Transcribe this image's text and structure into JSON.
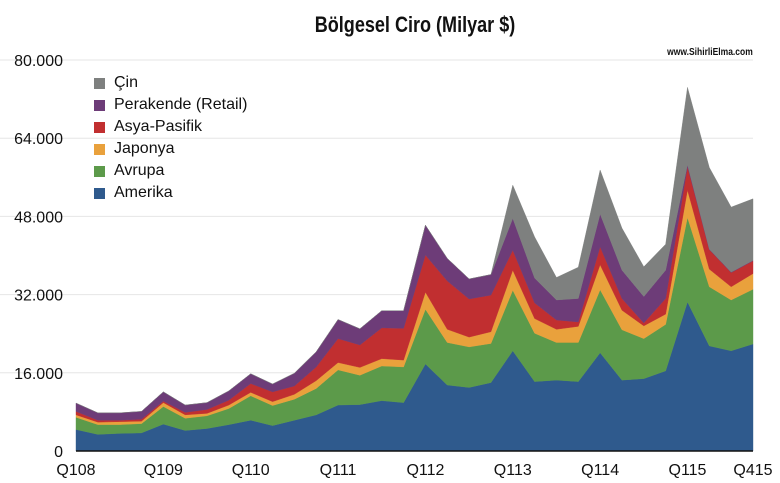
{
  "chart_data": {
    "type": "area",
    "stacked": true,
    "title": "Bölgesel Ciro (Milyar $)",
    "watermark": "www.SihirliElma.com",
    "xlabel": "",
    "ylabel": "",
    "ylim": [
      0,
      80000
    ],
    "yticks": [
      0,
      16000,
      32000,
      48000,
      64000,
      80000
    ],
    "ytick_labels": [
      "0",
      "16.000",
      "32.000",
      "48.000",
      "64.000",
      "80.000"
    ],
    "xtick_labels": [
      {
        "index": 0,
        "label": "Q108"
      },
      {
        "index": 4,
        "label": "Q109"
      },
      {
        "index": 8,
        "label": "Q110"
      },
      {
        "index": 12,
        "label": "Q111"
      },
      {
        "index": 16,
        "label": "Q112"
      },
      {
        "index": 20,
        "label": "Q113"
      },
      {
        "index": 24,
        "label": "Q114"
      },
      {
        "index": 28,
        "label": "Q115"
      },
      {
        "index": 31,
        "label": "Q415"
      }
    ],
    "grid": true,
    "legend_position": "top-left",
    "unit_note": "values in millions (axis 0–80.000)",
    "series": [
      {
        "name": "Amerika",
        "color": "#2f5a8d",
        "values": [
          4400,
          3400,
          3600,
          3700,
          5500,
          4200,
          4600,
          5400,
          6300,
          5200,
          6300,
          7400,
          9400,
          9500,
          10300,
          9900,
          17800,
          13500,
          13000,
          14000,
          20500,
          14200,
          14500,
          14200,
          20100,
          14500,
          14800,
          16400,
          30500,
          21500,
          20500,
          21900
        ]
      },
      {
        "name": "Avrupa",
        "color": "#5c9a4a",
        "values": [
          2500,
          2000,
          1800,
          1900,
          3600,
          2500,
          2600,
          3300,
          5000,
          4100,
          4300,
          5400,
          7200,
          6000,
          7100,
          7300,
          11200,
          8700,
          8300,
          8000,
          12400,
          9900,
          7700,
          8000,
          12900,
          10300,
          8200,
          9500,
          17300,
          12100,
          10400,
          11200
        ]
      },
      {
        "name": "Japonya",
        "color": "#e9a13c",
        "values": [
          500,
          500,
          600,
          500,
          800,
          700,
          500,
          700,
          700,
          800,
          1000,
          1600,
          1500,
          1600,
          1500,
          1400,
          3500,
          2700,
          2000,
          2400,
          4100,
          3000,
          2700,
          3300,
          5100,
          4000,
          2600,
          2100,
          5600,
          3600,
          2700,
          3200
        ]
      },
      {
        "name": "Asya-Pasifik",
        "color": "#c12f30",
        "values": [
          700,
          400,
          300,
          400,
          300,
          500,
          800,
          1000,
          1800,
          2000,
          1700,
          2800,
          4900,
          4600,
          6300,
          6500,
          7600,
          9900,
          7800,
          7500,
          4100,
          3200,
          1900,
          900,
          3700,
          2400,
          600,
          3200,
          4800,
          4000,
          2900,
          2600
        ]
      },
      {
        "name": "Perakende (Retail)",
        "color": "#6d3c78",
        "values": [
          1700,
          1500,
          1500,
          1600,
          1900,
          1500,
          1400,
          1900,
          2000,
          1600,
          2600,
          3100,
          3900,
          3300,
          3500,
          3600,
          6100,
          4600,
          4100,
          4200,
          6500,
          5100,
          4100,
          4800,
          6700,
          5800,
          5400,
          5800,
          400,
          100,
          100,
          100
        ]
      },
      {
        "name": "Çin",
        "color": "#7e807f",
        "values": [
          0,
          0,
          0,
          0,
          0,
          0,
          0,
          0,
          0,
          0,
          0,
          0,
          0,
          0,
          0,
          0,
          0,
          0,
          0,
          0,
          6800,
          8400,
          4600,
          6400,
          9000,
          8600,
          6100,
          5300,
          15800,
          16700,
          13300,
          12600
        ]
      }
    ]
  }
}
